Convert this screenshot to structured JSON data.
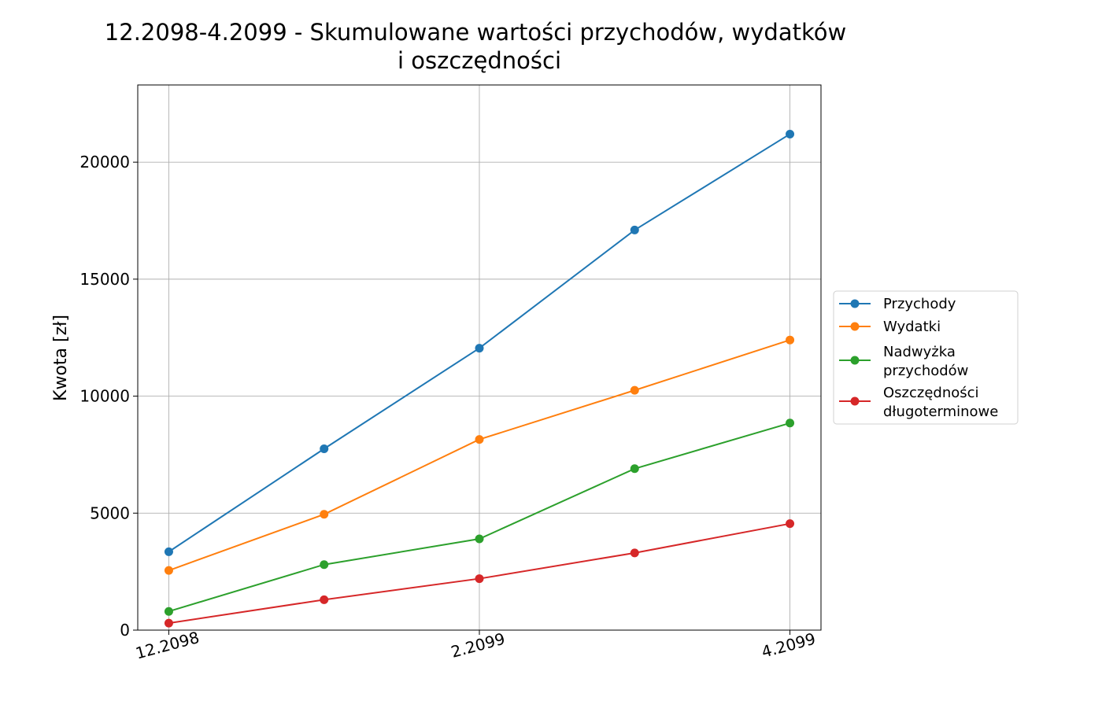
{
  "chart_data": {
    "type": "line",
    "title_lines": [
      "12.2098-4.2099 - Skumulowane wartości przychodów, wydatków",
      "i oszczędności"
    ],
    "xlabel": "",
    "ylabel": "Kwota [zł]",
    "x": [
      0,
      1,
      2,
      3,
      4
    ],
    "x_tick_values": [
      0,
      2,
      4
    ],
    "x_tick_labels": [
      "12.2098",
      "2.2099",
      "4.2099"
    ],
    "ylim": [
      0,
      23300
    ],
    "y_ticks": [
      0,
      5000,
      10000,
      15000,
      20000
    ],
    "y_tick_labels": [
      "0",
      "5000",
      "10000",
      "15000",
      "20000"
    ],
    "grid": true,
    "legend_position": "right, outside plot",
    "series": [
      {
        "name": "Przychody",
        "label_lines": [
          "Przychody"
        ],
        "color": "#1f77b4",
        "values": [
          3350,
          7750,
          12050,
          17100,
          21200
        ]
      },
      {
        "name": "Wydatki",
        "label_lines": [
          "Wydatki"
        ],
        "color": "#ff7f0e",
        "values": [
          2550,
          4950,
          8150,
          10250,
          12400
        ]
      },
      {
        "name": "Nadwyżka przychodów",
        "label_lines": [
          "Nadwyżka",
          "przychodów"
        ],
        "color": "#2ca02c",
        "values": [
          800,
          2800,
          3900,
          6900,
          8850
        ]
      },
      {
        "name": "Oszczędności długoterminowe",
        "label_lines": [
          "Oszczędności",
          "długoterminowe"
        ],
        "color": "#d62728",
        "values": [
          300,
          1300,
          2200,
          3300,
          4550
        ]
      }
    ]
  }
}
